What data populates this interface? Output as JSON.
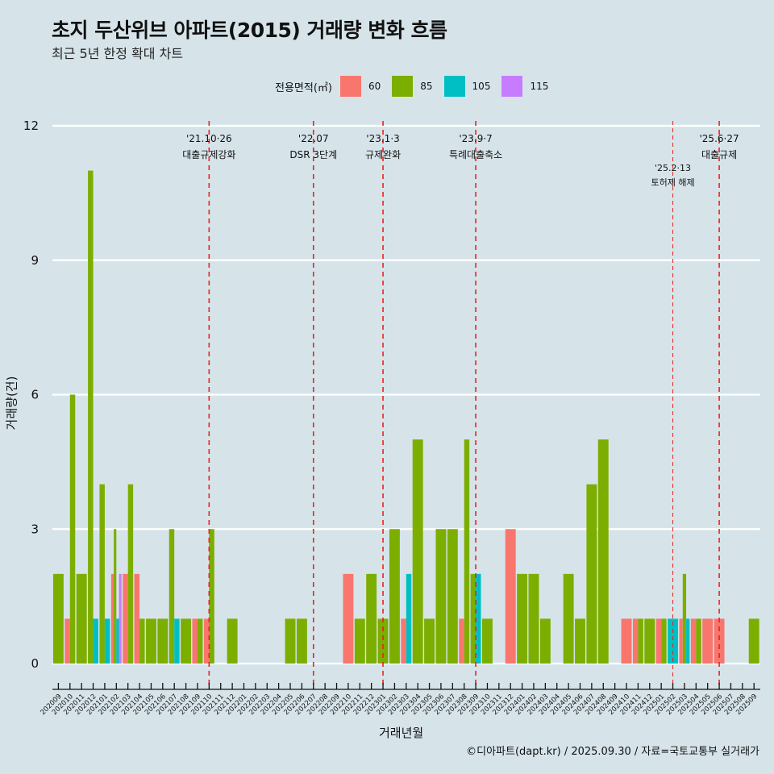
{
  "title": "초지 두산위브 아파트(2015) 거래량 변화 흐름",
  "subtitle": "최근 5년 한정 확대 차트",
  "caption": "©디아파트(dapt.kr) / 2025.09.30 / 자료=국토교통부 실거래가",
  "legend": {
    "title": "전용면적(㎡)",
    "items": [
      {
        "label": "60",
        "color": "#F8766D"
      },
      {
        "label": "85",
        "color": "#7CAE00"
      },
      {
        "label": "105",
        "color": "#00BFC4"
      },
      {
        "label": "115",
        "color": "#C77CFF"
      }
    ]
  },
  "chart_data": {
    "type": "bar",
    "bar_position": "dodge",
    "title": "초지 두산위브 아파트(2015) 거래량 변화 흐름",
    "subtitle": "최근 5년 한정 확대 차트",
    "xlabel": "거래년월",
    "ylabel": "거래량(건)",
    "ylim": [
      0,
      12
    ],
    "yticks": [
      0,
      3,
      6,
      9,
      12
    ],
    "grid": true,
    "legend_position": "top",
    "categories": [
      "202009",
      "202010",
      "202011",
      "202012",
      "202101",
      "202102",
      "202103",
      "202104",
      "202105",
      "202106",
      "202107",
      "202108",
      "202109",
      "202110",
      "202111",
      "202112",
      "202201",
      "202202",
      "202203",
      "202204",
      "202205",
      "202206",
      "202207",
      "202208",
      "202209",
      "202210",
      "202211",
      "202212",
      "202301",
      "202302",
      "202303",
      "202304",
      "202305",
      "202306",
      "202307",
      "202308",
      "202309",
      "202310",
      "202311",
      "202312",
      "202401",
      "202402",
      "202403",
      "202404",
      "202405",
      "202406",
      "202407",
      "202408",
      "202409",
      "202410",
      "202411",
      "202412",
      "202501",
      "202502",
      "202503",
      "202504",
      "202505",
      "202506",
      "202507",
      "202508",
      "202509"
    ],
    "series": [
      {
        "name": "60",
        "color": "#F8766D",
        "values": [
          0,
          1,
          0,
          0,
          0,
          2,
          2,
          2,
          0,
          0,
          0,
          0,
          1,
          1,
          0,
          0,
          0,
          0,
          0,
          0,
          0,
          0,
          0,
          0,
          0,
          2,
          0,
          0,
          0,
          0,
          1,
          0,
          0,
          0,
          0,
          1,
          0,
          0,
          0,
          3,
          0,
          0,
          0,
          0,
          0,
          0,
          0,
          0,
          0,
          1,
          1,
          0,
          1,
          0,
          1,
          1,
          1,
          1,
          0,
          0,
          0
        ]
      },
      {
        "name": "85",
        "color": "#7CAE00",
        "values": [
          2,
          6,
          2,
          11,
          4,
          3,
          4,
          1,
          1,
          1,
          3,
          1,
          1,
          3,
          0,
          1,
          0,
          0,
          0,
          0,
          1,
          1,
          0,
          0,
          0,
          0,
          1,
          2,
          1,
          3,
          0,
          5,
          1,
          3,
          3,
          5,
          2,
          1,
          0,
          0,
          2,
          2,
          1,
          0,
          2,
          1,
          4,
          5,
          0,
          0,
          1,
          1,
          1,
          0,
          2,
          1,
          0,
          0,
          0,
          0,
          1
        ]
      },
      {
        "name": "105",
        "color": "#00BFC4",
        "values": [
          0,
          0,
          0,
          1,
          1,
          1,
          0,
          0,
          0,
          0,
          1,
          0,
          0,
          0,
          0,
          0,
          0,
          0,
          0,
          0,
          0,
          0,
          0,
          0,
          0,
          0,
          0,
          0,
          0,
          0,
          2,
          0,
          0,
          0,
          0,
          0,
          2,
          0,
          0,
          0,
          0,
          0,
          0,
          0,
          0,
          0,
          0,
          0,
          0,
          0,
          0,
          0,
          0,
          1,
          1,
          0,
          0,
          0,
          0,
          0,
          0
        ]
      },
      {
        "name": "115",
        "color": "#C77CFF",
        "values": [
          0,
          0,
          0,
          0,
          0,
          2,
          0,
          0,
          0,
          0,
          0,
          0,
          0,
          0,
          0,
          0,
          0,
          0,
          0,
          0,
          0,
          0,
          0,
          0,
          0,
          0,
          0,
          0,
          0,
          0,
          0,
          0,
          0,
          0,
          0,
          0,
          0,
          0,
          0,
          0,
          0,
          0,
          0,
          0,
          0,
          0,
          0,
          0,
          0,
          0,
          0,
          0,
          0,
          0,
          0,
          0,
          0,
          0,
          0,
          0,
          0
        ]
      }
    ],
    "annotations": [
      {
        "category": "202110",
        "date": "'21.10·26",
        "text": "대출규제강화",
        "style": "major"
      },
      {
        "category": "202207",
        "date": "'22.07",
        "text": "DSR 3단계",
        "style": "major"
      },
      {
        "category": "202301",
        "date": "'23.1·3",
        "text": "규제완화",
        "style": "major"
      },
      {
        "category": "202309",
        "date": "'23.9·7",
        "text": "특례대출축소",
        "style": "major"
      },
      {
        "category": "202502",
        "date": "'25.2·13",
        "text": "토허제 해제",
        "style": "minor"
      },
      {
        "category": "202506",
        "date": "'25.6·27",
        "text": "대출규제",
        "style": "major"
      }
    ]
  }
}
